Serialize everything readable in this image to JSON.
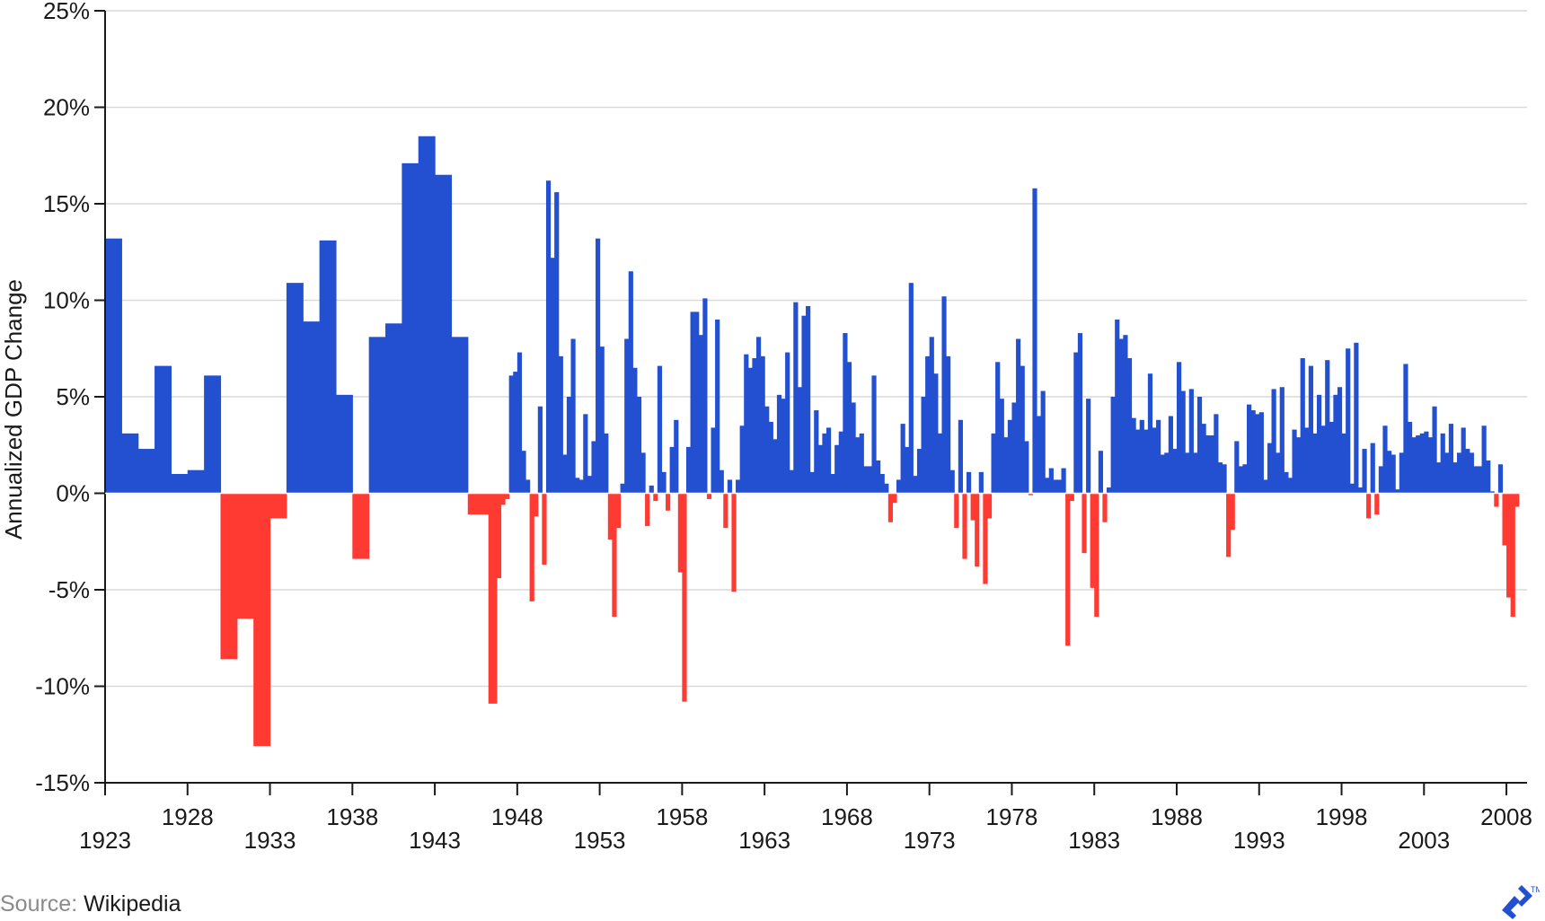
{
  "chart_data": {
    "type": "bar",
    "title": "",
    "xlabel": "",
    "ylabel": "Annualized GDP Change",
    "ylim": [
      -15,
      25
    ],
    "xlim": [
      1923,
      2009.25
    ],
    "yticks": [
      {
        "value": 25,
        "label": "25%"
      },
      {
        "value": 20,
        "label": "20%"
      },
      {
        "value": 15,
        "label": "15%"
      },
      {
        "value": 10,
        "label": "10%"
      },
      {
        "value": 5,
        "label": "5%"
      },
      {
        "value": 0,
        "label": "0%"
      },
      {
        "value": -5,
        "label": "-5%"
      },
      {
        "value": -10,
        "label": "-10%"
      },
      {
        "value": -15,
        "label": "-15%"
      }
    ],
    "xticks": [
      {
        "value": 1923,
        "label": "1923"
      },
      {
        "value": 1928,
        "label": "1928"
      },
      {
        "value": 1933,
        "label": "1933"
      },
      {
        "value": 1938,
        "label": "1938"
      },
      {
        "value": 1943,
        "label": "1943"
      },
      {
        "value": 1948,
        "label": "1948"
      },
      {
        "value": 1953,
        "label": "1953"
      },
      {
        "value": 1958,
        "label": "1958"
      },
      {
        "value": 1963,
        "label": "1963"
      },
      {
        "value": 1968,
        "label": "1968"
      },
      {
        "value": 1973,
        "label": "1973"
      },
      {
        "value": 1978,
        "label": "1978"
      },
      {
        "value": 1983,
        "label": "1983"
      },
      {
        "value": 1988,
        "label": "1988"
      },
      {
        "value": 1993,
        "label": "1993"
      },
      {
        "value": 1998,
        "label": "1998"
      },
      {
        "value": 2003,
        "label": "2003"
      },
      {
        "value": 2008,
        "label": "2008"
      }
    ],
    "grid": true,
    "colors": {
      "positive": "#2350d1",
      "negative": "#ff3a33"
    },
    "annual_series": {
      "start_year": 1923,
      "step_years": 1,
      "values": [
        13.2,
        3.1,
        2.3,
        6.6,
        1.0,
        1.2,
        6.1,
        -8.6,
        -6.5,
        -13.1,
        -1.3,
        10.9,
        8.9,
        13.1,
        5.1,
        -3.4,
        8.1,
        8.8,
        17.1,
        18.5,
        16.5,
        8.1,
        -1.1
      ]
    },
    "quarterly_series": {
      "start_year": 1946,
      "step_years": 0.25,
      "values": [
        -1.1,
        -10.9,
        -10.9,
        -4.4,
        -0.6,
        -0.3,
        6.1,
        6.3,
        7.3,
        2.2,
        0.7,
        -5.6,
        -1.2,
        4.5,
        -3.7,
        16.2,
        12.2,
        15.6,
        7.1,
        2.0,
        5.0,
        8.0,
        0.8,
        0.7,
        4.1,
        0.9,
        2.7,
        13.2,
        7.6,
        3.1,
        -2.4,
        -6.4,
        -1.8,
        0.5,
        8.0,
        11.5,
        6.5,
        5.0,
        2.1,
        -1.7,
        0.4,
        -0.4,
        6.6,
        1.1,
        -0.9,
        2.4,
        3.8,
        -4.1,
        -10.8,
        2.4,
        9.4,
        9.4,
        8.2,
        10.1,
        -0.3,
        3.4,
        9.0,
        1.2,
        -1.8,
        0.7,
        -5.1,
        0.7,
        3.5,
        7.2,
        6.5,
        7.0,
        8.1,
        7.1,
        4.5,
        3.7,
        2.8,
        5.1,
        4.9,
        7.3,
        1.2,
        9.9,
        5.5,
        9.2,
        9.7,
        1.1,
        4.3,
        2.5,
        3.1,
        3.4,
        1.0,
        2.5,
        3.2,
        8.3,
        6.8,
        4.7,
        2.9,
        3.1,
        1.4,
        1.4,
        6.1,
        1.7,
        1.0,
        0.5,
        -1.5,
        -0.5,
        0.7,
        3.6,
        2.4,
        10.9,
        0.9,
        2.3,
        5.0,
        7.1,
        8.1,
        6.2,
        3.1,
        10.2,
        7.1,
        1.2,
        -1.8,
        3.8,
        -3.4,
        1.1,
        -1.4,
        -3.8,
        1.1,
        -4.7,
        -1.3,
        3.1,
        6.8,
        4.9,
        2.9,
        3.8,
        4.7,
        8.0,
        6.6,
        2.7,
        -0.1,
        15.8,
        4.0,
        5.3,
        0.8,
        1.3,
        0.7,
        0.7,
        1.3,
        -7.9,
        -0.4,
        7.3,
        8.3,
        -3.1,
        4.9,
        -4.9,
        -6.4,
        2.2,
        -1.5,
        0.3,
        5.0,
        9.0,
        8.0,
        8.2,
        7.0,
        3.9,
        3.3,
        3.8,
        3.3,
        6.2,
        3.4,
        3.8,
        2.0,
        2.1,
        4.0,
        2.3,
        6.8,
        5.3,
        2.1,
        5.4,
        2.1,
        5.0,
        3.6,
        3.0,
        3.0,
        4.1,
        1.6,
        1.5,
        -3.3,
        -1.9,
        2.7,
        1.4,
        1.5,
        4.6,
        4.3,
        4.1,
        4.2,
        0.7,
        2.6,
        5.4,
        2.1,
        5.5,
        1.1,
        0.8,
        3.3,
        2.9,
        7.0,
        3.4,
        6.6,
        3.1,
        5.1,
        3.5,
        6.9,
        3.7,
        5.1,
        5.5,
        3.1,
        7.5,
        0.5,
        7.8,
        0.3,
        2.3,
        -1.3,
        2.6,
        -1.1,
        1.4,
        3.5,
        2.2,
        2.0,
        0.2,
        2.1,
        6.7,
        3.7,
        2.9,
        3.0,
        3.1,
        3.2,
        2.9,
        4.5,
        1.6,
        3.1,
        2.1,
        3.6,
        1.6,
        2.1,
        3.4,
        2.3,
        2.1,
        1.4,
        1.4,
        3.5,
        1.7,
        0.1,
        -0.7,
        1.5,
        -2.7,
        -5.4,
        -6.4,
        -0.7
      ]
    }
  },
  "source": {
    "prefix": "Source:",
    "name": "Wikipedia"
  },
  "logo_icon": "brand-arrow-logo-icon"
}
